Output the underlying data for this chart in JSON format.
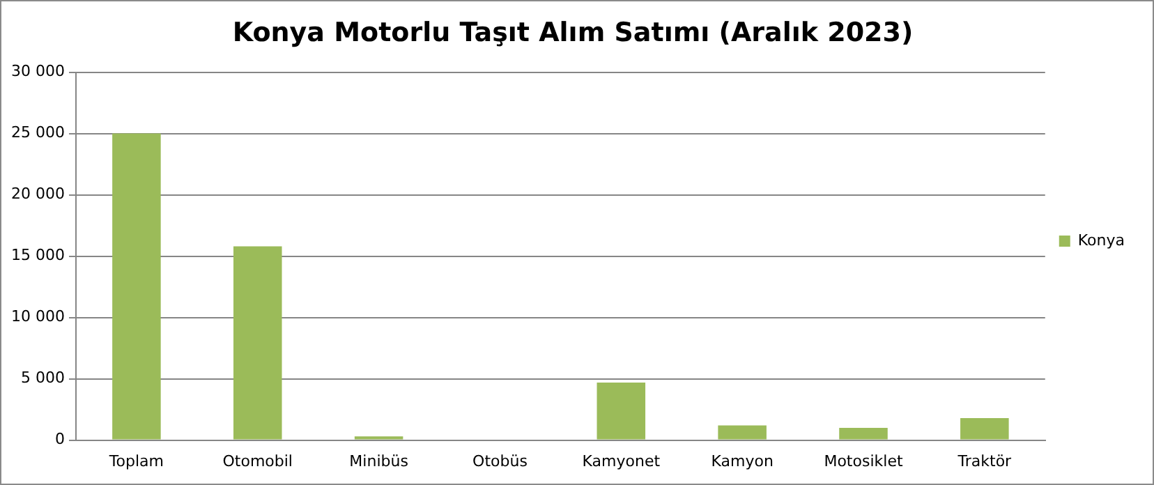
{
  "chart_data": {
    "type": "bar",
    "title": "Konya Motorlu Taşıt Alım Satımı (Aralık 2023)",
    "categories": [
      "Toplam",
      "Otomobil",
      "Minibüs",
      "Otobüs",
      "Kamyonet",
      "Kamyon",
      "Motosiklet",
      "Traktör"
    ],
    "series": [
      {
        "name": "Konya",
        "color": "#9bbb59",
        "values": [
          25000,
          15800,
          300,
          0,
          4700,
          1200,
          1000,
          1800
        ]
      }
    ],
    "ylim": [
      0,
      30000
    ],
    "yticks": [
      {
        "value": 0,
        "label": "0"
      },
      {
        "value": 5000,
        "label": "5 000"
      },
      {
        "value": 10000,
        "label": "10 000"
      },
      {
        "value": 15000,
        "label": "15 000"
      },
      {
        "value": 20000,
        "label": "20 000"
      },
      {
        "value": 25000,
        "label": "25 000"
      },
      {
        "value": 30000,
        "label": "30 000"
      }
    ],
    "grid": "y",
    "legend": "right"
  }
}
